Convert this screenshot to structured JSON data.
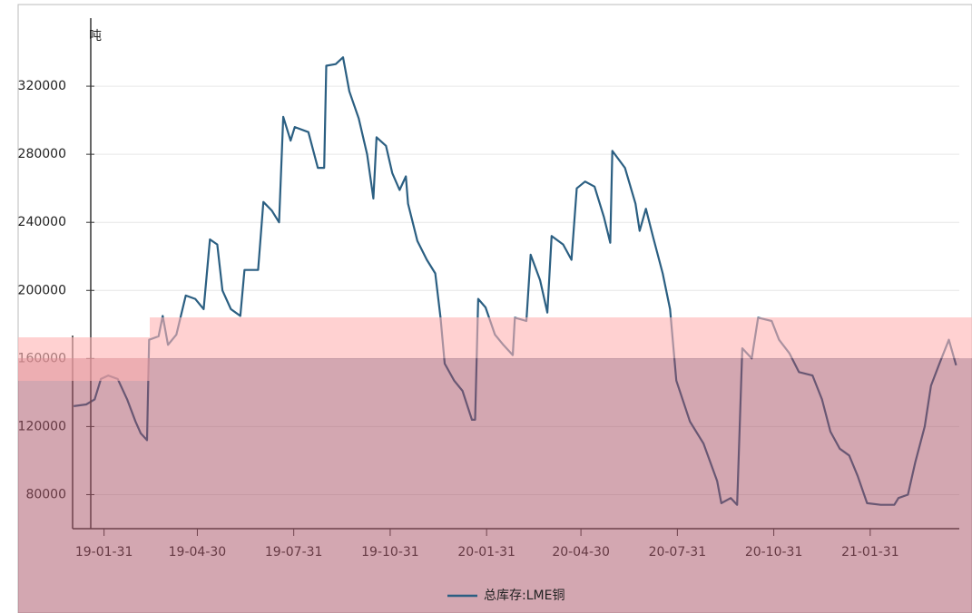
{
  "chart_data": {
    "type": "line",
    "y_unit": "吨",
    "x": [
      "2019-01-02",
      "2019-01-14",
      "2019-01-22",
      "2019-01-28",
      "2019-02-04",
      "2019-02-13",
      "2019-02-22",
      "2019-03-02",
      "2019-03-07",
      "2019-03-13",
      "2019-03-15",
      "2019-03-24",
      "2019-03-28",
      "2019-04-02",
      "2019-04-10",
      "2019-04-19",
      "2019-04-28",
      "2019-05-06",
      "2019-05-12",
      "2019-05-19",
      "2019-05-24",
      "2019-06-01",
      "2019-06-10",
      "2019-06-14",
      "2019-06-27",
      "2019-07-02",
      "2019-07-10",
      "2019-07-17",
      "2019-07-21",
      "2019-07-28",
      "2019-08-01",
      "2019-08-14",
      "2019-08-23",
      "2019-08-29",
      "2019-08-31",
      "2019-09-09",
      "2019-09-16",
      "2019-09-22",
      "2019-10-01",
      "2019-10-09",
      "2019-10-15",
      "2019-10-18",
      "2019-10-27",
      "2019-11-02",
      "2019-11-09",
      "2019-11-15",
      "2019-11-17",
      "2019-11-26",
      "2019-12-05",
      "2019-12-13",
      "2019-12-18",
      "2019-12-22",
      "2019-12-31",
      "2020-01-08",
      "2020-01-17",
      "2020-01-20",
      "2020-01-23",
      "2020-01-30",
      "2020-02-08",
      "2020-02-16",
      "2020-02-25",
      "2020-02-27",
      "2020-03-09",
      "2020-03-13",
      "2020-03-22",
      "2020-03-29",
      "2020-04-02",
      "2020-04-13",
      "2020-04-21",
      "2020-04-26",
      "2020-05-04",
      "2020-05-13",
      "2020-05-22",
      "2020-05-28",
      "2020-05-30",
      "2020-06-11",
      "2020-06-21",
      "2020-06-25",
      "2020-07-01",
      "2020-07-08",
      "2020-07-17",
      "2020-07-24",
      "2020-07-30",
      "2020-08-12",
      "2020-08-25",
      "2020-09-07",
      "2020-09-11",
      "2020-09-20",
      "2020-09-26",
      "2020-10-01",
      "2020-10-10",
      "2020-10-16",
      "2020-10-29",
      "2020-11-05",
      "2020-11-15",
      "2020-11-24",
      "2020-12-07",
      "2020-12-16",
      "2020-12-24",
      "2021-01-02",
      "2021-01-11",
      "2021-01-19",
      "2021-01-28",
      "2021-02-10",
      "2021-02-23",
      "2021-02-27",
      "2021-03-08",
      "2021-03-15",
      "2021-03-24",
      "2021-03-30",
      "2021-04-07",
      "2021-04-16",
      "2021-04-23"
    ],
    "series": [
      {
        "name": "总库存:LME铜",
        "color": "#2b5f82",
        "values": [
          132000,
          133000,
          136000,
          148000,
          150000,
          148000,
          136000,
          123000,
          116000,
          112000,
          171000,
          173000,
          185000,
          168000,
          174000,
          197000,
          195000,
          189000,
          230000,
          227000,
          200000,
          189000,
          185000,
          212000,
          212000,
          252000,
          247000,
          240000,
          302000,
          288000,
          296000,
          293000,
          272000,
          272000,
          332000,
          333000,
          337000,
          317000,
          301000,
          280000,
          254000,
          290000,
          285000,
          269000,
          259000,
          267000,
          251000,
          229000,
          218000,
          210000,
          184000,
          157000,
          147000,
          141000,
          124000,
          124000,
          195000,
          190000,
          174000,
          168000,
          162000,
          184000,
          182000,
          221000,
          206000,
          187000,
          232000,
          227000,
          218000,
          260000,
          264000,
          261000,
          243000,
          228000,
          282000,
          272000,
          251000,
          235000,
          248000,
          231000,
          210000,
          189000,
          147000,
          123000,
          110000,
          88000,
          75000,
          78000,
          74000,
          166000,
          160000,
          184000,
          182000,
          171000,
          163000,
          152000,
          150000,
          136000,
          117000,
          107000,
          103000,
          91000,
          75000,
          74000,
          74000,
          78000,
          80000,
          99000,
          120000,
          144000,
          157000,
          171000,
          156000
        ]
      }
    ],
    "xlim": [
      "2019-01-01",
      "2021-04-26"
    ],
    "xticks": [
      {
        "value": "2019-01-31",
        "label": "19-01-31"
      },
      {
        "value": "2019-04-30",
        "label": "19-04-30"
      },
      {
        "value": "2019-07-31",
        "label": "19-07-31"
      },
      {
        "value": "2019-10-31",
        "label": "19-10-31"
      },
      {
        "value": "2020-01-31",
        "label": "20-01-31"
      },
      {
        "value": "2020-04-30",
        "label": "20-04-30"
      },
      {
        "value": "2020-07-31",
        "label": "20-07-31"
      },
      {
        "value": "2020-10-31",
        "label": "20-10-31"
      },
      {
        "value": "2021-01-31",
        "label": "21-01-31"
      }
    ],
    "ylim": [
      60000,
      360000
    ],
    "yticks": [
      80000,
      120000,
      160000,
      200000,
      240000,
      280000,
      320000
    ],
    "grid": true,
    "legend": "bottom"
  }
}
